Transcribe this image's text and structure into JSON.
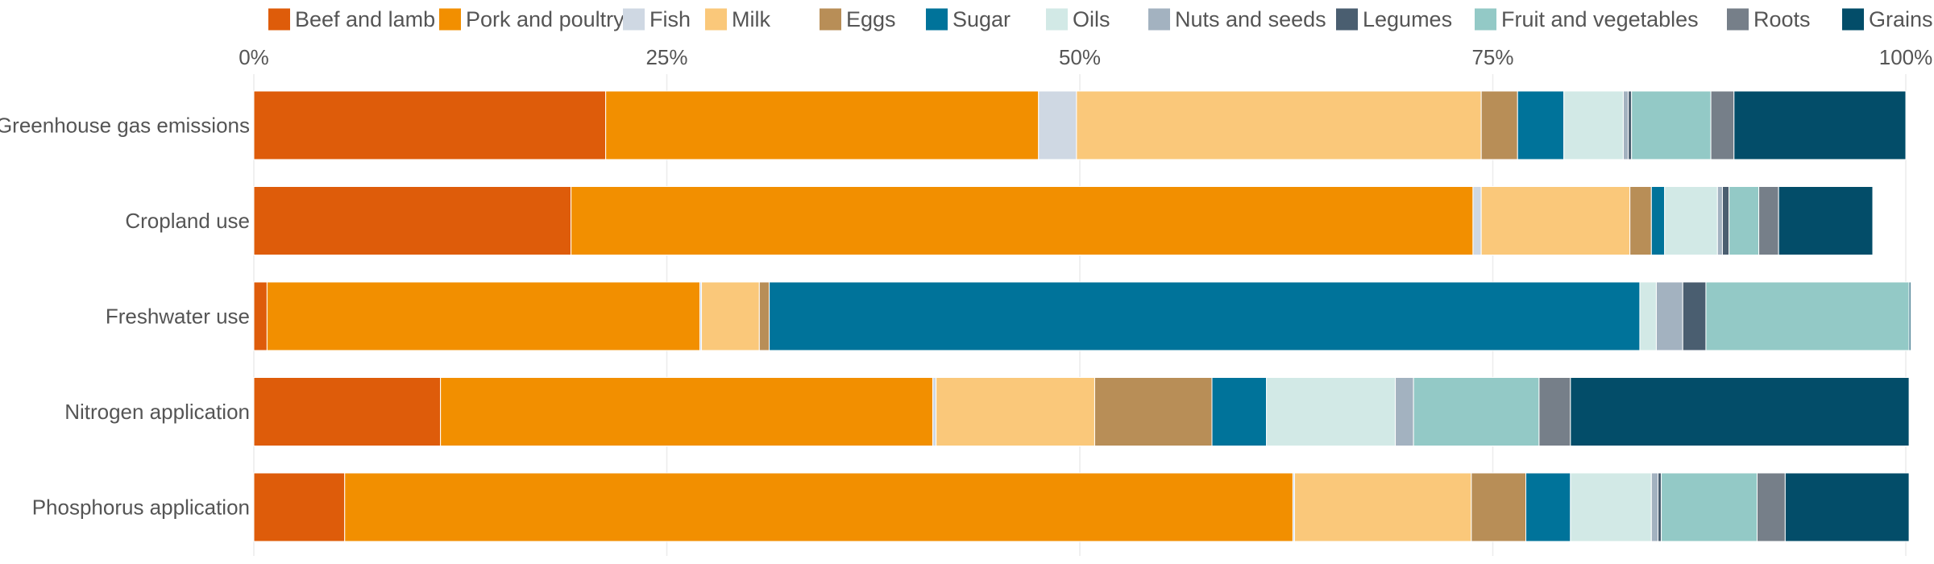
{
  "chart_data": {
    "type": "bar",
    "orientation": "horizontal",
    "stacked": true,
    "normalized": true,
    "xlim": [
      0,
      100
    ],
    "x_ticks": [
      0,
      25,
      50,
      75,
      100
    ],
    "x_tick_labels": [
      "0%",
      "25%",
      "50%",
      "75%",
      "100%"
    ],
    "x_axis_position": "top",
    "grid": true,
    "legend_position": "top",
    "categories": [
      "Greenhouse gas emissions",
      "Cropland use",
      "Freshwater use",
      "Nitrogen application",
      "Phosphorus application"
    ],
    "series": [
      {
        "name": "Beef and lamb",
        "color": "#de5c0a",
        "values": [
          21.3,
          19.2,
          0.8,
          11.3,
          5.5
        ]
      },
      {
        "name": "Pork and poultry",
        "color": "#f28f00",
        "values": [
          26.2,
          54.6,
          26.2,
          29.8,
          57.4
        ]
      },
      {
        "name": "Fish",
        "color": "#cfd8e3",
        "values": [
          2.3,
          0.5,
          0.1,
          0.2,
          0.1
        ]
      },
      {
        "name": "Milk",
        "color": "#fac87a",
        "values": [
          24.5,
          9.0,
          3.5,
          9.6,
          10.7
        ]
      },
      {
        "name": "Eggs",
        "color": "#b88e57",
        "values": [
          2.2,
          1.3,
          0.6,
          7.1,
          3.3
        ]
      },
      {
        "name": "Sugar",
        "color": "#00739a",
        "values": [
          2.8,
          0.8,
          52.7,
          3.3,
          2.7
        ]
      },
      {
        "name": "Oils",
        "color": "#d2e9e6",
        "values": [
          3.6,
          3.2,
          1.0,
          7.8,
          4.9
        ]
      },
      {
        "name": "Nuts and seeds",
        "color": "#a3b2c0",
        "values": [
          0.3,
          0.3,
          1.6,
          1.1,
          0.4
        ]
      },
      {
        "name": "Legumes",
        "color": "#4a5e70",
        "values": [
          0.2,
          0.4,
          1.4,
          0.0,
          0.2
        ]
      },
      {
        "name": "Fruit and vegetables",
        "color": "#93c9c6",
        "values": [
          4.8,
          1.8,
          12.3,
          7.6,
          5.8
        ]
      },
      {
        "name": "Roots",
        "color": "#767f89",
        "values": [
          1.4,
          1.2,
          0.0,
          1.9,
          1.7
        ]
      },
      {
        "name": "Grains",
        "color": "#034d69",
        "values": [
          10.4,
          5.7,
          0.1,
          20.5,
          7.5
        ]
      }
    ]
  }
}
